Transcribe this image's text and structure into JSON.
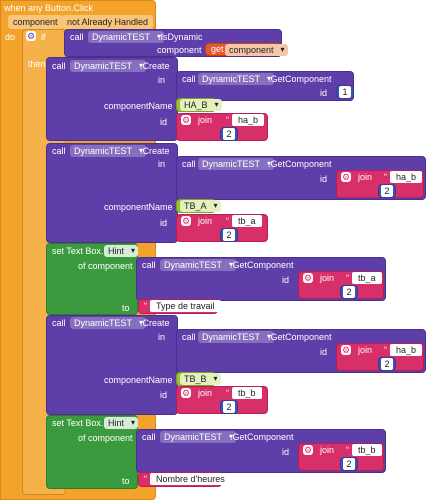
{
  "event": {
    "title": "when any Button.Click",
    "param": "component",
    "param2": "not Already Handled",
    "do": "do",
    "then": "then"
  },
  "labels": {
    "if": "if",
    "call": "call",
    "component": "component",
    "in": "in",
    "id": "id",
    "componentName": "componentName",
    "set": "set Text Box.",
    "of_component": "of component",
    "to": "to",
    "get": "get",
    "join": "join"
  },
  "methods": {
    "isDynamic": ".IsDynamic",
    "create": ".Create",
    "getComponent": ".GetComponent"
  },
  "dropdowns": {
    "dynamic": "DynamicTEST",
    "component": "component",
    "hint": "Hint"
  },
  "blocks": {
    "create1": {
      "id_num": "1",
      "name_text": "HA_B",
      "join_text": "ha_b",
      "join_num": "2"
    },
    "create2": {
      "inner_text": "ha_b",
      "inner_num": "2",
      "name_text": "TB_A",
      "join_text": "tb_a",
      "join_num": "2"
    },
    "set1": {
      "inner_text": "tb_a",
      "inner_num": "2",
      "to_text": "Type de travail"
    },
    "create3": {
      "inner_text": "ha_b",
      "inner_num": "2",
      "name_text": "TB_B",
      "join_text": "tb_b",
      "join_num": "2"
    },
    "set2": {
      "inner_text": "tb_b",
      "inner_num": "2",
      "to_text": "Nombre d'heures"
    }
  }
}
